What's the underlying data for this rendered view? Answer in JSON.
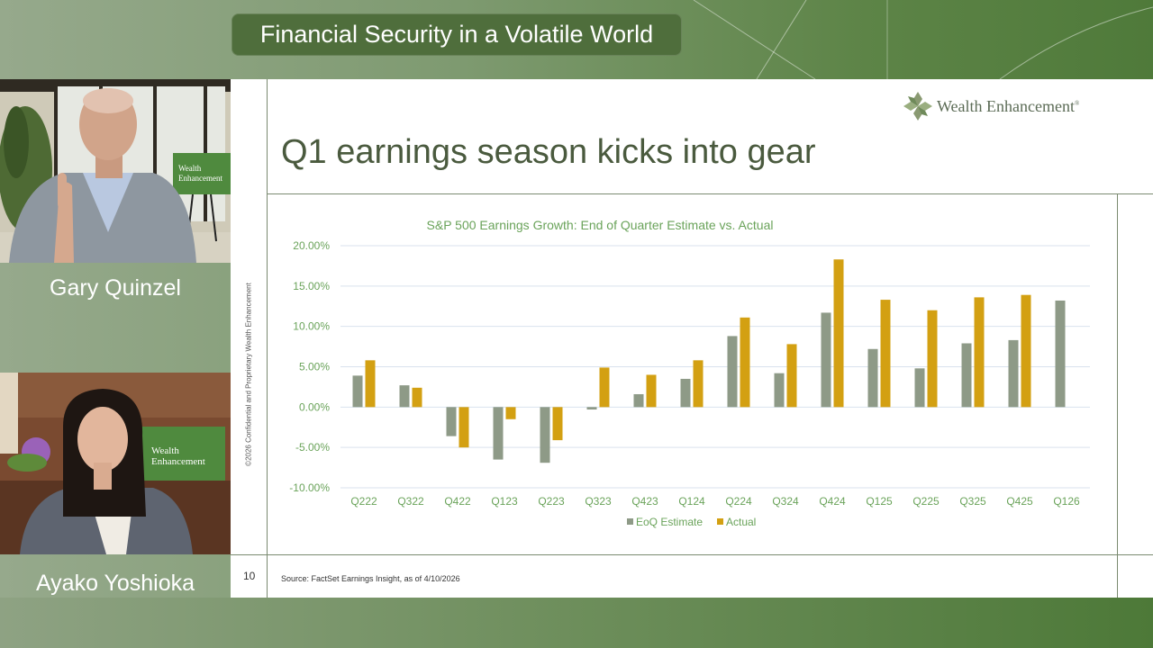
{
  "banner": {
    "title": "Financial Security in a Volatile World"
  },
  "speakers": [
    {
      "name": "Gary Quinzel",
      "sign_text_1": "Wealth",
      "sign_text_2": "Enhancement"
    },
    {
      "name": "Ayako Yoshioka",
      "sign_text_1": "Wealth",
      "sign_text_2": "Enhancement"
    }
  ],
  "slide": {
    "title": "Q1 earnings season kicks into gear",
    "logo_text": "Wealth Enhancement",
    "logo_mark": "®",
    "vertical_note": "©2026 Confidential and Proprietary Wealth Enhancement",
    "page_number": "10",
    "source": "Source: FactSet Earnings Insight, as of 4/10/2026"
  },
  "colors": {
    "estimate": "#8e9a87",
    "actual": "#d3a012",
    "title_green": "#6aa35a",
    "grid": "#d9e2ee"
  },
  "chart_data": {
    "type": "bar",
    "title": "S&P 500 Earnings Growth: End of Quarter Estimate vs. Actual",
    "categories": [
      "Q222",
      "Q322",
      "Q422",
      "Q123",
      "Q223",
      "Q323",
      "Q423",
      "Q124",
      "Q224",
      "Q324",
      "Q424",
      "Q125",
      "Q225",
      "Q325",
      "Q425",
      "Q126"
    ],
    "series": [
      {
        "name": "EoQ Estimate",
        "values": [
          3.9,
          2.7,
          -3.6,
          -6.5,
          -6.9,
          -0.3,
          1.6,
          3.5,
          8.8,
          4.2,
          11.7,
          7.2,
          4.8,
          7.9,
          8.3,
          13.2
        ]
      },
      {
        "name": "Actual",
        "values": [
          5.8,
          2.4,
          -5.0,
          -1.5,
          -4.1,
          4.9,
          4.0,
          5.8,
          11.1,
          7.8,
          18.3,
          13.3,
          12.0,
          13.6,
          13.9,
          null
        ]
      }
    ],
    "ylim": [
      -10,
      20
    ],
    "yticks": [
      20,
      15,
      10,
      5,
      0,
      -5,
      -10
    ],
    "ytick_labels": [
      "20.00%",
      "15.00%",
      "10.00%",
      "5.00%",
      "0.00%",
      "-5.00%",
      "-10.00%"
    ],
    "grid": true,
    "legend": "bottom"
  }
}
